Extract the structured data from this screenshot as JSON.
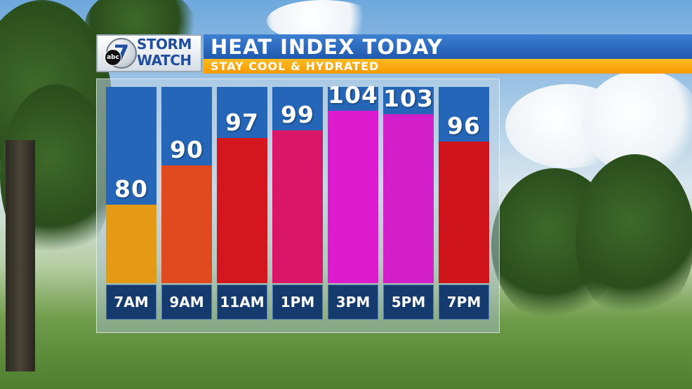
{
  "logo": {
    "network": "abc",
    "channel": "7",
    "line1": "STORM",
    "line2": "WATCH"
  },
  "header": {
    "title": "HEAT INDEX TODAY",
    "subtitle": "STAY COOL & HYDRATED"
  },
  "chart_data": {
    "type": "bar",
    "title": "HEAT INDEX TODAY",
    "subtitle": "STAY COOL & HYDRATED",
    "categories": [
      "7AM",
      "9AM",
      "11AM",
      "1PM",
      "3PM",
      "5PM",
      "7PM"
    ],
    "values": [
      80,
      90,
      97,
      99,
      104,
      103,
      96
    ],
    "value_labels": [
      "80",
      "90",
      "97",
      "99",
      "104",
      "103",
      "96"
    ],
    "bar_colors": [
      "#e49a14",
      "#e04a1e",
      "#d4161e",
      "#da1668",
      "#dd1ccf",
      "#d21fc9",
      "#d0141c"
    ],
    "background_color": "#2566b8",
    "ylim": [
      60,
      110
    ],
    "grid": false,
    "legend": "none"
  }
}
